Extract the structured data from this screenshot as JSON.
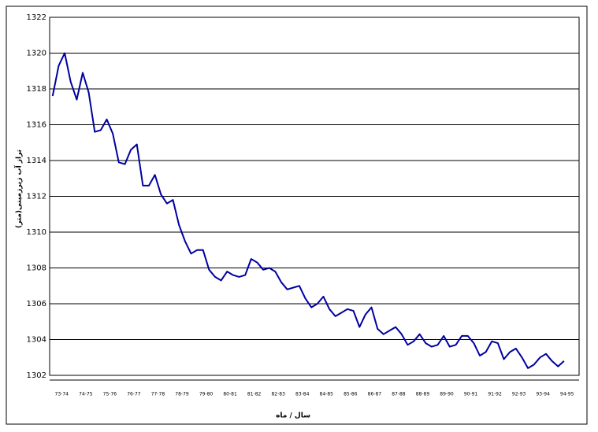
{
  "chart_data": {
    "type": "line",
    "y_label": "تراز آب زیرزمینی(متر)",
    "x_label": "سال / ماه",
    "categories": [
      "73-74",
      null,
      null,
      null,
      "74-75",
      null,
      null,
      null,
      "75-76",
      null,
      null,
      null,
      "76-77",
      null,
      null,
      null,
      "77-78",
      null,
      null,
      null,
      "78-79",
      null,
      null,
      null,
      "79-80",
      null,
      null,
      null,
      "80-81",
      null,
      null,
      null,
      "81-82",
      null,
      null,
      null,
      "82-83",
      null,
      null,
      null,
      "83-84",
      null,
      null,
      null,
      "84-85",
      null,
      null,
      null,
      "85-86",
      null,
      null,
      null,
      "86-87",
      null,
      null,
      null,
      "87-88",
      null,
      null,
      null,
      "88-89",
      null,
      null,
      null,
      "89-90",
      null,
      null,
      null,
      "90-91",
      null,
      null,
      null,
      "91-92",
      null,
      null,
      null,
      "92-93",
      null,
      null,
      null,
      "93-94",
      null,
      null,
      null,
      "94-95",
      null,
      null,
      null
    ],
    "series": [
      {
        "color": "#0000a0",
        "values": [
          1317.6,
          1319.3,
          1320.0,
          1318.4,
          1317.4,
          1318.9,
          1317.8,
          1315.6,
          1315.7,
          1316.3,
          1315.5,
          1313.9,
          1313.8,
          1314.6,
          1314.9,
          1312.6,
          1312.6,
          1313.2,
          1312.1,
          1311.6,
          1311.8,
          1310.4,
          1309.5,
          1308.8,
          1309.0,
          1309.0,
          1307.9,
          1307.5,
          1307.3,
          1307.8,
          1307.6,
          1307.5,
          1307.6,
          1308.5,
          1308.3,
          1307.9,
          1308.0,
          1307.8,
          1307.2,
          1306.8,
          1306.9,
          1307.0,
          1306.3,
          1305.8,
          1306.0,
          1306.4,
          1305.7,
          1305.3,
          1305.5,
          1305.7,
          1305.6,
          1304.7,
          1305.4,
          1305.8,
          1304.6,
          1304.3,
          1304.5,
          1304.7,
          1304.3,
          1303.7,
          1303.9,
          1304.3,
          1303.8,
          1303.6,
          1303.7,
          1304.2,
          1303.6,
          1303.7,
          1304.2,
          1304.2,
          1303.8,
          1303.1,
          1303.3,
          1303.9,
          1303.8,
          1302.9,
          1303.3,
          1303.5,
          1303.0,
          1302.4,
          1302.6,
          1303.0,
          1303.2,
          1302.8,
          1302.5,
          1302.8,
          null,
          null
        ]
      }
    ],
    "ylim": [
      1302,
      1322
    ],
    "yticks": [
      1302,
      1304,
      1306,
      1308,
      1310,
      1312,
      1314,
      1316,
      1318,
      1320,
      1322
    ],
    "grid": true
  }
}
